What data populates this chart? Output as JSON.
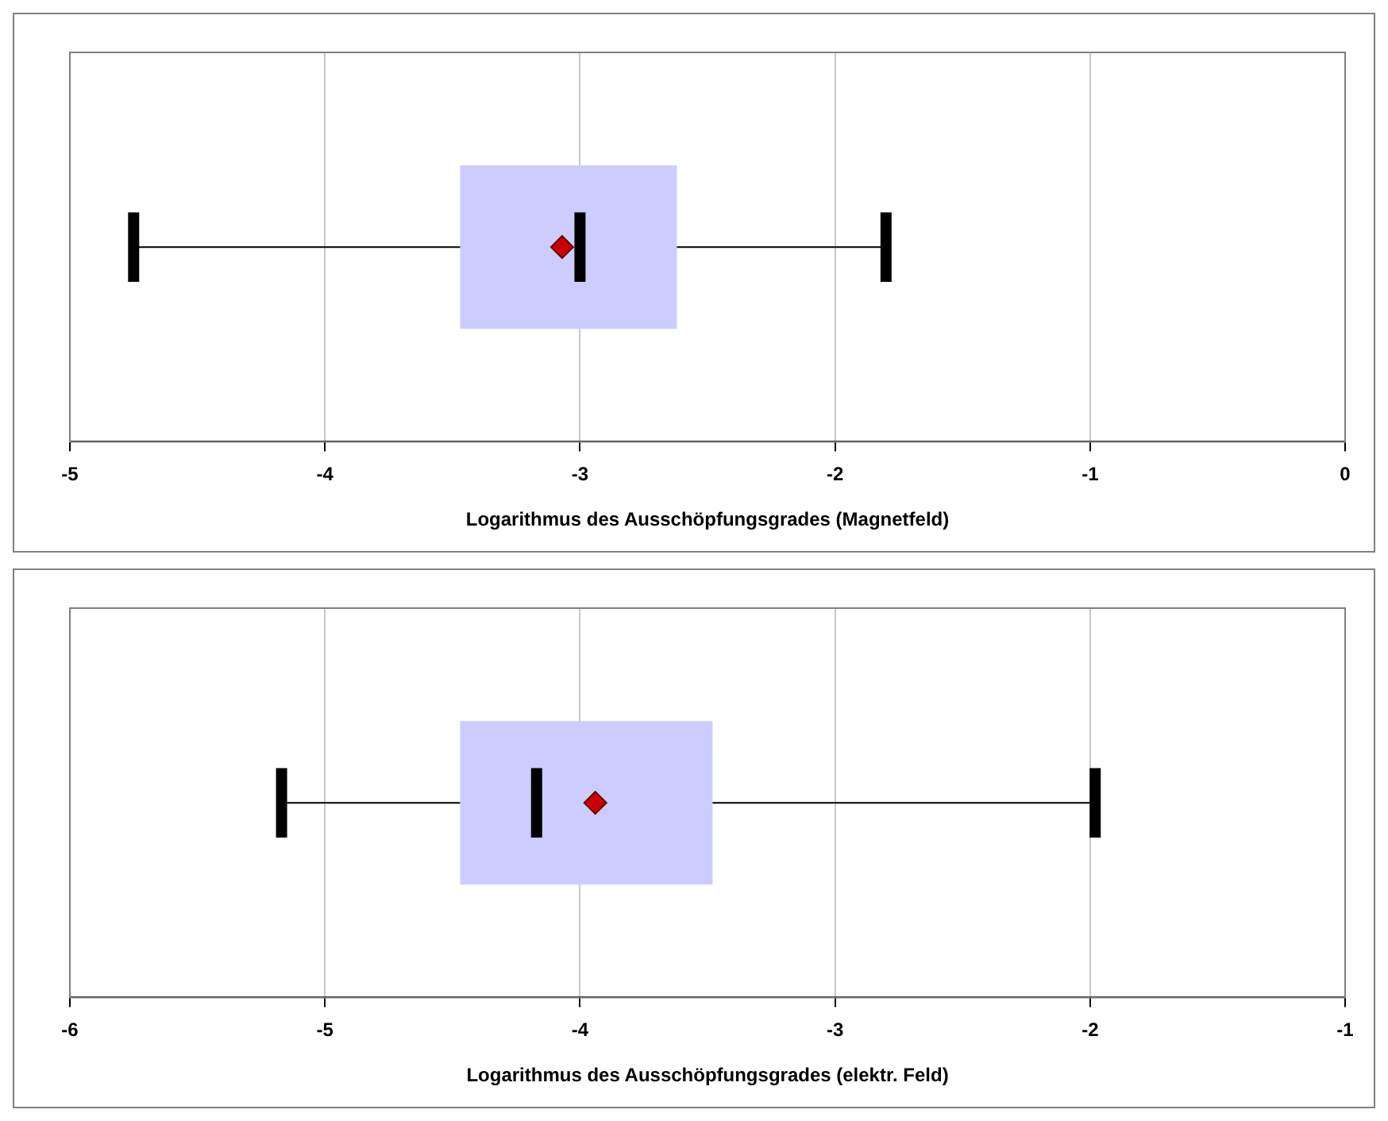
{
  "chart_data": [
    {
      "type": "box",
      "orientation": "horizontal",
      "categories": [
        null
      ],
      "xlabel": "Logarithmus des Ausschöpfungsgrades (Magnetfeld)",
      "xlim": [
        -5,
        0
      ],
      "xticks": [
        -5,
        -4,
        -3,
        -2,
        -1,
        0
      ],
      "grid": "x",
      "tick_labels": "x",
      "marker": "diamond",
      "color": "#ccccff",
      "boxes": [
        {
          "low": -4.75,
          "q1": -3.47,
          "median": -3.0,
          "q3": -2.62,
          "high": -1.8,
          "mean": -3.07
        }
      ]
    },
    {
      "type": "box",
      "orientation": "horizontal",
      "categories": [
        null
      ],
      "xlabel": "Logarithmus des Ausschöpfungsgrades (elektr. Feld)",
      "xlim": [
        -6,
        -1
      ],
      "xticks": [
        -6,
        -5,
        -4,
        -3,
        -2,
        -1
      ],
      "grid": "x",
      "tick_labels": "x",
      "marker": "diamond",
      "color": "#ccccff",
      "boxes": [
        {
          "low": -5.17,
          "q1": -4.47,
          "median": -4.17,
          "q3": -3.48,
          "high": -1.98,
          "mean": -3.94
        }
      ]
    }
  ]
}
